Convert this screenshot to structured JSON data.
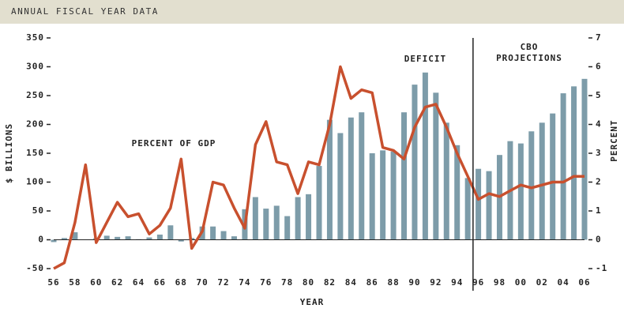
{
  "chart_data": {
    "type": "combo",
    "title": "ANNUAL FISCAL YEAR DATA",
    "xlabel": "YEAR",
    "ylabel": "$ BILLIONS",
    "y2label": "PERCENT",
    "annotations": [
      "CBO",
      "PROJECTIONS"
    ],
    "categories": [
      "56",
      null,
      "58",
      null,
      "60",
      null,
      "62",
      null,
      "64",
      null,
      "66",
      null,
      "68",
      null,
      "70",
      null,
      "72",
      null,
      "74",
      null,
      "76",
      null,
      "78",
      null,
      "80",
      null,
      "82",
      null,
      "84",
      null,
      "86",
      null,
      "88",
      null,
      "90",
      null,
      "92",
      null,
      "94",
      null,
      "96",
      null,
      "98",
      null,
      "00",
      null,
      "02",
      null,
      "04",
      null,
      "06"
    ],
    "series": [
      {
        "name": "DEFICIT",
        "type": "bar",
        "color": "#7d9ca9",
        "values": [
          -4,
          3,
          13,
          0,
          3,
          7,
          5,
          6,
          1,
          4,
          9,
          25,
          -3,
          3,
          23,
          23,
          15,
          6,
          53,
          74,
          54,
          59,
          41,
          74,
          79,
          128,
          208,
          185,
          212,
          221,
          150,
          155,
          153,
          221,
          269,
          290,
          255,
          203,
          164,
          107,
          123,
          119,
          147,
          171,
          167,
          188,
          203,
          219,
          254,
          266,
          279
        ]
      },
      {
        "name": "PERCENT OF GDP",
        "type": "line",
        "axis": "y2",
        "color": "#c8502e",
        "values": [
          -1.0,
          -0.8,
          0.6,
          2.6,
          -0.1,
          0.6,
          1.3,
          0.8,
          0.9,
          0.2,
          0.5,
          1.1,
          2.8,
          -0.3,
          0.3,
          2.0,
          1.9,
          1.1,
          0.4,
          3.3,
          4.1,
          2.7,
          2.6,
          1.6,
          2.7,
          2.6,
          4.0,
          6.0,
          4.9,
          5.2,
          5.1,
          3.2,
          3.1,
          2.8,
          3.9,
          4.6,
          4.7,
          3.9,
          3.0,
          2.2,
          1.4,
          1.6,
          1.5,
          1.7,
          1.9,
          1.8,
          1.9,
          2.0,
          2.0,
          2.2,
          2.2
        ]
      }
    ],
    "projection_start": "96",
    "ylim": [
      -50,
      350
    ],
    "yticks": [
      -50,
      0,
      50,
      100,
      150,
      200,
      250,
      300,
      350
    ],
    "y2lim": [
      -1,
      7
    ],
    "y2ticks": [
      -1,
      0,
      1,
      2,
      3,
      4,
      5,
      6,
      7
    ]
  }
}
